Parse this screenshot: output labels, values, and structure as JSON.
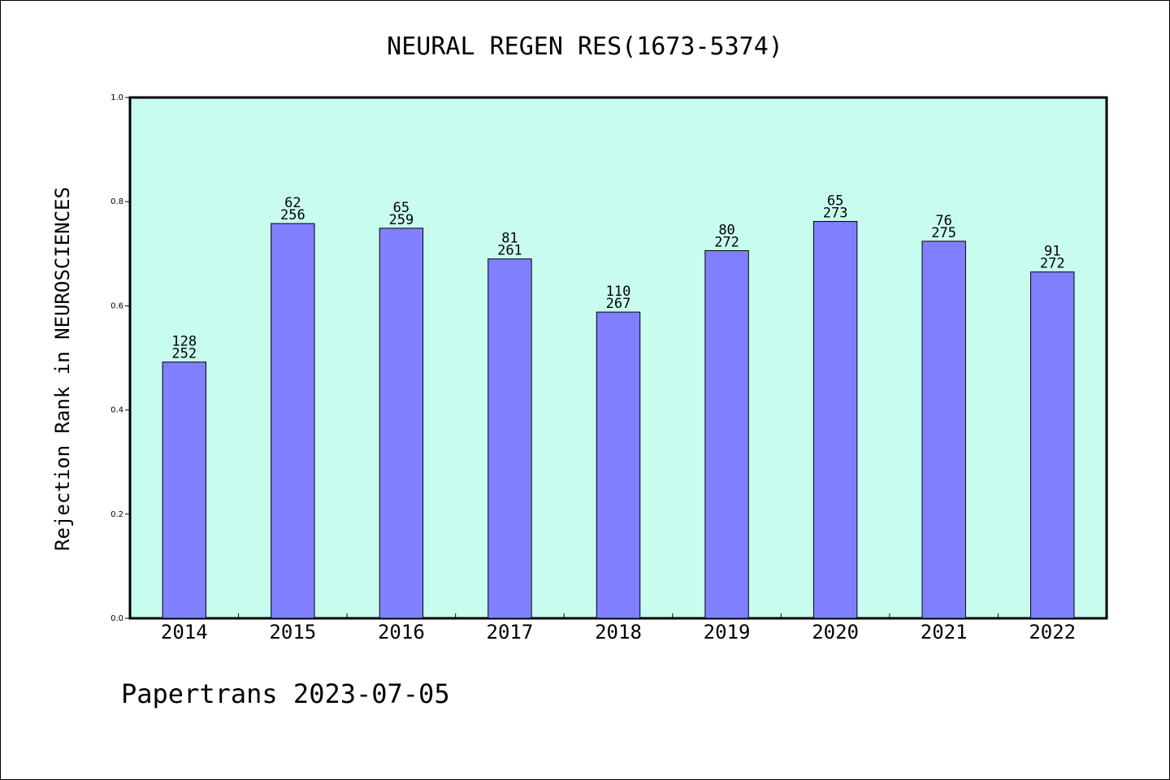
{
  "chart_data": {
    "type": "bar",
    "title": "NEURAL REGEN RES(1673-5374)",
    "xlabel": "",
    "ylabel": "Rejection Rank in NEUROSCIENCES",
    "ylim": [
      0,
      1.0
    ],
    "yticks": [
      "0.0",
      "0.2",
      "0.4",
      "0.6",
      "0.8",
      "1.0"
    ],
    "categories": [
      "2014",
      "2015",
      "2016",
      "2017",
      "2018",
      "2019",
      "2020",
      "2021",
      "2022"
    ],
    "values": [
      0.492,
      0.758,
      0.749,
      0.69,
      0.588,
      0.706,
      0.762,
      0.724,
      0.665
    ],
    "rank_labels": [
      "128",
      "62",
      "65",
      "81",
      "110",
      "80",
      "65",
      "76",
      "91"
    ],
    "total_labels": [
      "252",
      "256",
      "259",
      "261",
      "267",
      "272",
      "273",
      "275",
      "272"
    ],
    "grid": false,
    "legend": "none"
  },
  "footer": {
    "text": "Papertrans 2023-07-05"
  },
  "colors": {
    "plot_bg": "#c8fcee",
    "bar_fill": "#8080ff",
    "bar_stroke": "#000000",
    "axis": "#000000"
  }
}
